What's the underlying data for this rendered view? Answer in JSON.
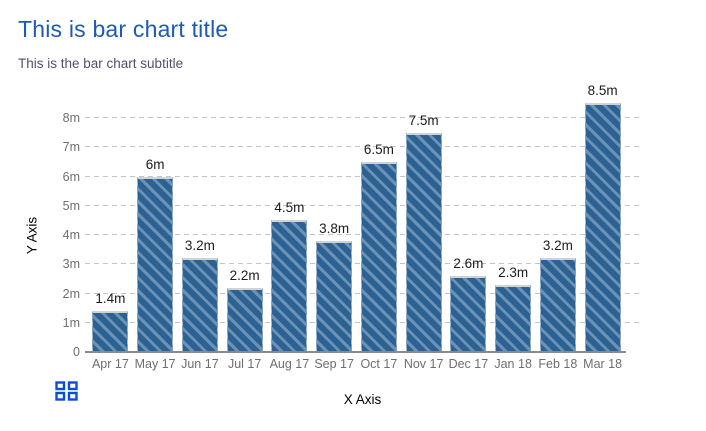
{
  "chart_data": {
    "type": "bar",
    "title": "This is bar chart title",
    "subtitle": "This is the bar chart subtitle",
    "xlabel": "X Axis",
    "ylabel": "Y Axis",
    "categories": [
      "Apr 17",
      "May 17",
      "Jun 17",
      "Jul 17",
      "Aug 17",
      "Sep 17",
      "Oct 17",
      "Nov 17",
      "Dec 17",
      "Jan 18",
      "Feb 18",
      "Mar 18"
    ],
    "values": [
      1.4,
      6,
      3.2,
      2.2,
      4.5,
      3.8,
      6.5,
      7.5,
      2.6,
      2.3,
      3.2,
      8.5
    ],
    "bar_labels": [
      "1.4m",
      "6m",
      "3.2m",
      "2.2m",
      "4.5m",
      "3.8m",
      "6.5m",
      "7.5m",
      "2.6m",
      "2.3m",
      "3.2m",
      "8.5m"
    ],
    "value_unit": "m",
    "ylim": [
      0,
      8.6
    ],
    "yticks": [
      {
        "value": 0,
        "label": "0"
      },
      {
        "value": 1,
        "label": "1m"
      },
      {
        "value": 2,
        "label": "2m"
      },
      {
        "value": 3,
        "label": "3m"
      },
      {
        "value": 4,
        "label": "4m"
      },
      {
        "value": 5,
        "label": "5m"
      },
      {
        "value": 6,
        "label": "6m"
      },
      {
        "value": 7,
        "label": "7m"
      },
      {
        "value": 8,
        "label": "8m"
      }
    ],
    "grid": "horizontal-dashed",
    "legend": "none",
    "bar_style": {
      "fill": "#2b6293",
      "hatch": "diagonal-down",
      "hatch_color": "#5e89ad",
      "top_edge": "#cfd3d6"
    }
  },
  "colors": {
    "title": "#1e5ab4",
    "subtitle": "#50506a",
    "axis_line": "#8a8a8a",
    "tick_label": "#6e6e6e",
    "value_label": "#1c1c1c",
    "gridline": "#c4c4c4",
    "icon_blue": "#0b50d2"
  },
  "footer": {
    "icon": "grid-menu"
  }
}
